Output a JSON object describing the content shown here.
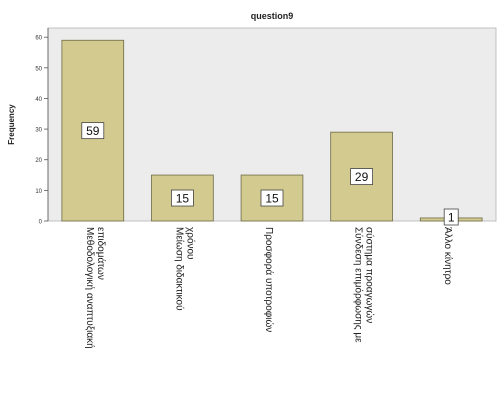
{
  "chart_data": {
    "type": "bar",
    "title": "question9",
    "ylabel": "Frequency",
    "xlabel": "",
    "categories": [
      "Μεθοδολογική αναπτυξιακή επιδομάτων",
      "Μείωση διδακτικού χρόνου",
      "Προσφορά υποτροφιών",
      "Σύνδεση επιμόρφωσης με σύστημα προαγωγών",
      "Άλλο κίνητρο"
    ],
    "values": [
      59,
      15,
      15,
      29,
      1
    ],
    "value_labels": [
      "59",
      "15",
      "15",
      "29",
      "1"
    ],
    "ylim": [
      0,
      63
    ],
    "yticks": [
      0,
      10,
      20,
      30,
      40,
      50,
      60
    ],
    "grid": false,
    "legend": "none",
    "colors": {
      "bar_fill": "#d2ca8f",
      "bar_stroke": "#6e6a45",
      "plot_background": "#ececec",
      "value_label_box": "#ffffff"
    }
  }
}
